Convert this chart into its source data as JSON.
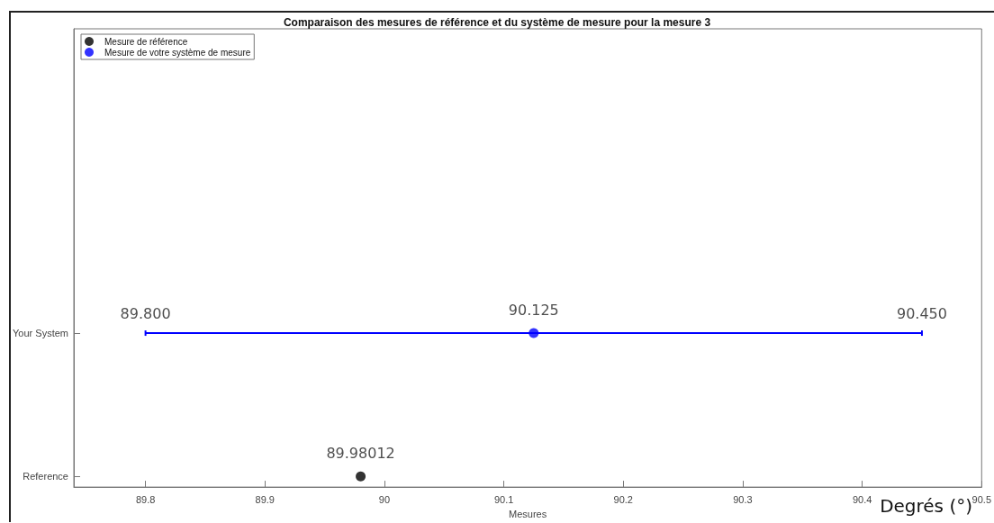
{
  "chart_data": {
    "type": "scatter",
    "orientation": "horizontal",
    "title": "Comparaison des mesures de référence et du système de mesure pour la mesure 3",
    "xlabel": "Mesures",
    "categories": [
      "Your System",
      "Reference"
    ],
    "series": [
      {
        "name": "Mesure de référence",
        "color": "#000000",
        "values": [
          null,
          89.98012
        ],
        "value_labels": [
          null,
          "89.98012"
        ]
      },
      {
        "name": "Mesure de votre système de mesure",
        "color": "#0000ff",
        "values": [
          90.125,
          null
        ],
        "errors": [
          0.325,
          null
        ],
        "value_labels": [
          "90.125",
          null
        ]
      }
    ],
    "xlim": [
      89.74,
      90.5
    ],
    "xticks": [
      89.8,
      89.9,
      90,
      90.1,
      90.2,
      90.3,
      90.4,
      90.5
    ],
    "annotations": [
      {
        "text": "89.800",
        "x": 89.8,
        "y": "Your System"
      },
      {
        "text": "90.450",
        "x": 90.45,
        "y": "Your System"
      },
      "Degrés (°)"
    ],
    "legend": "top left",
    "marker": "circle",
    "grid": false
  }
}
